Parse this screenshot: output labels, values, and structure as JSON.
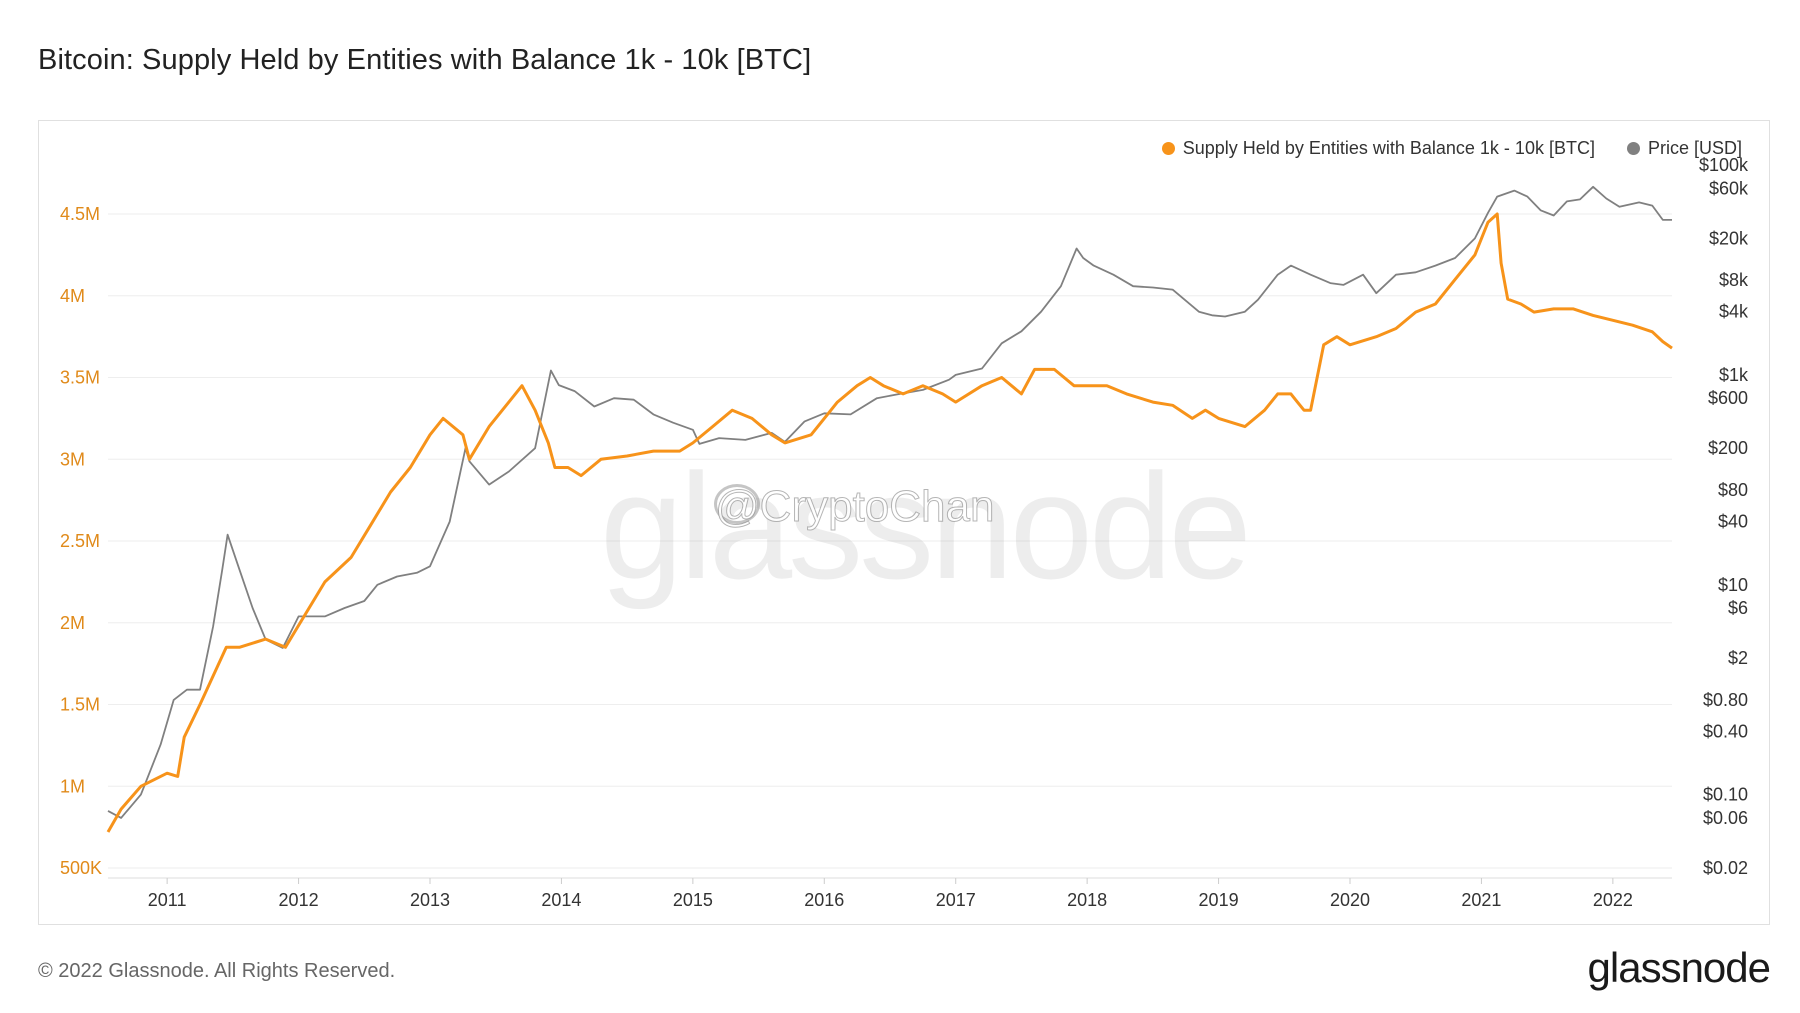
{
  "title": "Bitcoin: Supply Held by Entities with Balance 1k - 10k [BTC]",
  "footer": "© 2022 Glassnode. All Rights Reserved.",
  "logo": "glassnode",
  "watermark": "glassnode",
  "credit": "@CryptoChan",
  "colors": {
    "supply": "#f7931a",
    "price": "#808080",
    "grid": "#eeeeee",
    "left_axis": "#e08a1a",
    "right_axis": "#333333"
  },
  "chart_data": {
    "type": "line",
    "title": "Bitcoin: Supply Held by Entities with Balance 1k - 10k [BTC]",
    "legend_position": "top-right",
    "grid": true,
    "x_ticks": [
      "2011",
      "2012",
      "2013",
      "2014",
      "2015",
      "2016",
      "2017",
      "2018",
      "2019",
      "2020",
      "2021",
      "2022"
    ],
    "x_range": [
      2010.55,
      2022.45
    ],
    "y_left": {
      "scale": "linear",
      "range": [
        500000,
        4800000
      ],
      "ticks": [
        500000,
        1000000,
        1500000,
        2000000,
        2500000,
        3000000,
        3500000,
        4000000,
        4500000
      ],
      "tick_labels": [
        "500K",
        "1M",
        "1.5M",
        "2M",
        "2.5M",
        "3M",
        "3.5M",
        "4M",
        "4.5M"
      ]
    },
    "y_right": {
      "scale": "log",
      "range": [
        0.02,
        100000
      ],
      "ticks": [
        0.02,
        0.06,
        0.1,
        0.4,
        0.8,
        2,
        6,
        10,
        40,
        80,
        200,
        600,
        1000,
        4000,
        8000,
        20000,
        60000,
        100000
      ],
      "tick_labels": [
        "$0.02",
        "$0.06",
        "$0.10",
        "$0.40",
        "$0.80",
        "$2",
        "$6",
        "$10",
        "$40",
        "$80",
        "$200",
        "$600",
        "$1k",
        "$4k",
        "$8k",
        "$20k",
        "$60k",
        "$100k"
      ]
    },
    "series": [
      {
        "name": "Supply Held by Entities with Balance 1k - 10k [BTC]",
        "axis": "left",
        "x": [
          2010.55,
          2010.65,
          2010.8,
          2011.0,
          2011.08,
          2011.13,
          2011.25,
          2011.45,
          2011.55,
          2011.75,
          2011.9,
          2012.05,
          2012.2,
          2012.4,
          2012.55,
          2012.7,
          2012.85,
          2013.0,
          2013.1,
          2013.25,
          2013.3,
          2013.45,
          2013.55,
          2013.7,
          2013.8,
          2013.9,
          2013.95,
          2014.05,
          2014.15,
          2014.3,
          2014.5,
          2014.7,
          2014.9,
          2015.0,
          2015.15,
          2015.3,
          2015.45,
          2015.6,
          2015.7,
          2015.9,
          2016.0,
          2016.1,
          2016.25,
          2016.35,
          2016.45,
          2016.6,
          2016.75,
          2016.9,
          2017.0,
          2017.2,
          2017.35,
          2017.5,
          2017.6,
          2017.75,
          2017.9,
          2018.0,
          2018.15,
          2018.3,
          2018.5,
          2018.65,
          2018.8,
          2018.9,
          2019.0,
          2019.2,
          2019.35,
          2019.45,
          2019.55,
          2019.6,
          2019.65,
          2019.7,
          2019.8,
          2019.9,
          2020.0,
          2020.2,
          2020.35,
          2020.5,
          2020.65,
          2020.8,
          2020.95,
          2021.05,
          2021.12,
          2021.15,
          2021.2,
          2021.3,
          2021.4,
          2021.55,
          2021.7,
          2021.85,
          2022.0,
          2022.15,
          2022.3,
          2022.38,
          2022.45
        ],
        "values": [
          720000,
          860000,
          1000000,
          1080000,
          1060000,
          1300000,
          1500000,
          1850000,
          1850000,
          1900000,
          1850000,
          2050000,
          2250000,
          2400000,
          2600000,
          2800000,
          2950000,
          3150000,
          3250000,
          3150000,
          3000000,
          3200000,
          3300000,
          3450000,
          3300000,
          3100000,
          2950000,
          2950000,
          2900000,
          3000000,
          3020000,
          3050000,
          3050000,
          3100000,
          3200000,
          3300000,
          3250000,
          3150000,
          3100000,
          3150000,
          3250000,
          3350000,
          3450000,
          3500000,
          3450000,
          3400000,
          3450000,
          3400000,
          3350000,
          3450000,
          3500000,
          3400000,
          3550000,
          3550000,
          3450000,
          3450000,
          3450000,
          3400000,
          3350000,
          3330000,
          3250000,
          3300000,
          3250000,
          3200000,
          3300000,
          3400000,
          3400000,
          3350000,
          3300000,
          3300000,
          3700000,
          3750000,
          3700000,
          3750000,
          3800000,
          3900000,
          3950000,
          4100000,
          4250000,
          4450000,
          4500000,
          4200000,
          3980000,
          3950000,
          3900000,
          3920000,
          3920000,
          3880000,
          3850000,
          3820000,
          3780000,
          3720000,
          3680000
        ]
      },
      {
        "name": "Price [USD]",
        "axis": "right",
        "x": [
          2010.55,
          2010.65,
          2010.8,
          2010.95,
          2011.05,
          2011.15,
          2011.25,
          2011.35,
          2011.42,
          2011.46,
          2011.55,
          2011.65,
          2011.75,
          2011.88,
          2012.0,
          2012.1,
          2012.2,
          2012.35,
          2012.5,
          2012.6,
          2012.75,
          2012.9,
          2013.0,
          2013.15,
          2013.27,
          2013.3,
          2013.45,
          2013.6,
          2013.8,
          2013.92,
          2013.98,
          2014.1,
          2014.25,
          2014.4,
          2014.55,
          2014.7,
          2014.85,
          2015.0,
          2015.05,
          2015.2,
          2015.4,
          2015.6,
          2015.7,
          2015.85,
          2016.0,
          2016.2,
          2016.4,
          2016.55,
          2016.75,
          2016.95,
          2017.0,
          2017.2,
          2017.35,
          2017.5,
          2017.65,
          2017.8,
          2017.92,
          2017.97,
          2018.05,
          2018.2,
          2018.35,
          2018.5,
          2018.65,
          2018.85,
          2018.95,
          2019.05,
          2019.2,
          2019.3,
          2019.45,
          2019.55,
          2019.7,
          2019.85,
          2019.95,
          2020.1,
          2020.2,
          2020.35,
          2020.5,
          2020.65,
          2020.8,
          2020.95,
          2021.05,
          2021.12,
          2021.25,
          2021.35,
          2021.45,
          2021.55,
          2021.65,
          2021.75,
          2021.85,
          2021.95,
          2022.05,
          2022.2,
          2022.3,
          2022.38,
          2022.45
        ],
        "values": [
          0.07,
          0.06,
          0.1,
          0.3,
          0.8,
          1.0,
          1.0,
          4,
          14,
          30,
          14,
          6,
          3,
          2.5,
          5,
          5,
          5,
          6,
          7,
          10,
          12,
          13,
          15,
          40,
          200,
          150,
          90,
          120,
          200,
          1100,
          800,
          700,
          500,
          600,
          580,
          420,
          350,
          300,
          220,
          250,
          240,
          280,
          230,
          360,
          430,
          420,
          600,
          650,
          720,
          900,
          1000,
          1150,
          2000,
          2600,
          4000,
          7000,
          16000,
          13000,
          11000,
          9000,
          7000,
          6800,
          6500,
          4000,
          3700,
          3600,
          4000,
          5200,
          9000,
          11000,
          9000,
          7500,
          7200,
          9000,
          6000,
          9000,
          9500,
          11000,
          13000,
          20000,
          35000,
          50000,
          57000,
          50000,
          37000,
          33000,
          45000,
          47000,
          62000,
          48000,
          40000,
          44000,
          41000,
          30000,
          30000
        ]
      }
    ]
  }
}
